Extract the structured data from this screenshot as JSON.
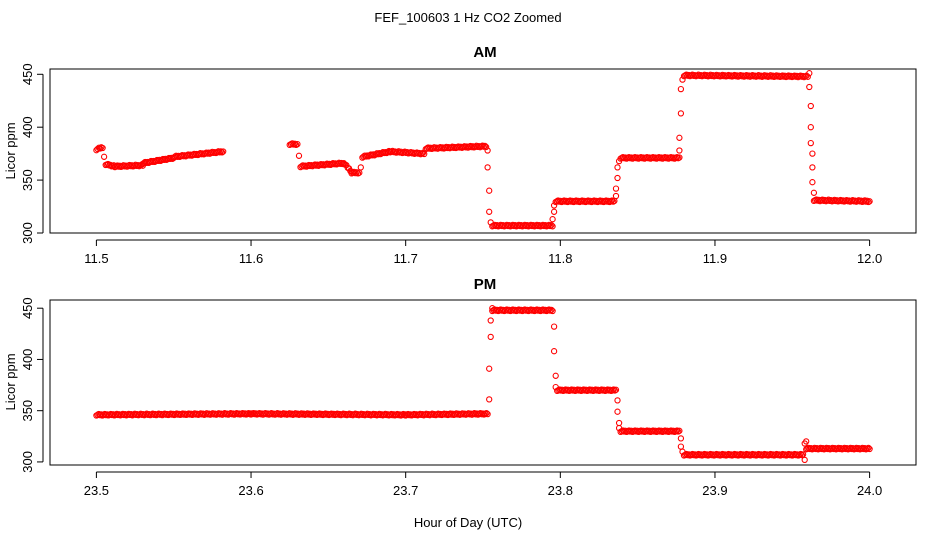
{
  "figure": {
    "title": "FEF_100603  1 Hz CO2 Zoomed",
    "xlabel": "Hour of Day (UTC)",
    "point_color": "#ff0000"
  },
  "chart_data": [
    {
      "type": "scatter",
      "title": "AM",
      "xlabel": "",
      "ylabel": "Licor ppm",
      "xlim": [
        11.47,
        12.03
      ],
      "ylim": [
        300,
        455
      ],
      "xticks": [
        11.5,
        11.6,
        11.7,
        11.8,
        11.9,
        12.0
      ],
      "xtick_labels": [
        "11.5",
        "11.6",
        "11.7",
        "11.8",
        "11.9",
        "12.0"
      ],
      "yticks": [
        300,
        350,
        400,
        450
      ],
      "ytick_labels": [
        "300",
        "350",
        "400",
        "450"
      ],
      "grid": false,
      "series": [
        {
          "color": "#ff0000",
          "runs": [
            {
              "x0": 11.5,
              "x1": 11.504,
              "y0": 379,
              "y1": 381
            },
            {
              "x0": 11.506,
              "x1": 11.512,
              "y0": 365,
              "y1": 363
            },
            {
              "x0": 11.512,
              "x1": 11.53,
              "y0": 363,
              "y1": 364
            },
            {
              "x0": 11.53,
              "x1": 11.55,
              "y0": 366,
              "y1": 371
            },
            {
              "x0": 11.55,
              "x1": 11.582,
              "y0": 372,
              "y1": 377
            },
            {
              "x0": 11.625,
              "x1": 11.63,
              "y0": 384,
              "y1": 384
            },
            {
              "x0": 11.632,
              "x1": 11.66,
              "y0": 363,
              "y1": 366
            },
            {
              "x0": 11.66,
              "x1": 11.665,
              "y0": 366,
              "y1": 358
            },
            {
              "x0": 11.665,
              "x1": 11.67,
              "y0": 357,
              "y1": 357
            },
            {
              "x0": 11.672,
              "x1": 11.69,
              "y0": 372,
              "y1": 377
            },
            {
              "x0": 11.69,
              "x1": 11.712,
              "y0": 377,
              "y1": 375
            },
            {
              "x0": 11.713,
              "x1": 11.752,
              "y0": 380,
              "y1": 382
            },
            {
              "x0": 11.756,
              "x1": 11.795,
              "y0": 307,
              "y1": 307
            },
            {
              "x0": 11.797,
              "x1": 11.835,
              "y0": 330,
              "y1": 330
            },
            {
              "x0": 11.839,
              "x1": 11.877,
              "y0": 371,
              "y1": 371
            },
            {
              "x0": 11.88,
              "x1": 11.96,
              "y0": 449,
              "y1": 448
            },
            {
              "x0": 11.964,
              "x1": 12.0,
              "y0": 331,
              "y1": 330
            }
          ],
          "points": [
            {
              "x": 11.505,
              "y": 372
            },
            {
              "x": 11.631,
              "y": 373
            },
            {
              "x": 11.671,
              "y": 362
            },
            {
              "x": 11.753,
              "y": 378
            },
            {
              "x": 11.753,
              "y": 362
            },
            {
              "x": 11.754,
              "y": 340
            },
            {
              "x": 11.754,
              "y": 320
            },
            {
              "x": 11.755,
              "y": 310
            },
            {
              "x": 11.795,
              "y": 313
            },
            {
              "x": 11.796,
              "y": 320
            },
            {
              "x": 11.796,
              "y": 326
            },
            {
              "x": 11.836,
              "y": 335
            },
            {
              "x": 11.836,
              "y": 342
            },
            {
              "x": 11.837,
              "y": 352
            },
            {
              "x": 11.837,
              "y": 362
            },
            {
              "x": 11.838,
              "y": 368
            },
            {
              "x": 11.877,
              "y": 378
            },
            {
              "x": 11.877,
              "y": 390
            },
            {
              "x": 11.878,
              "y": 413
            },
            {
              "x": 11.878,
              "y": 436
            },
            {
              "x": 11.879,
              "y": 445
            },
            {
              "x": 11.961,
              "y": 451
            },
            {
              "x": 11.961,
              "y": 438
            },
            {
              "x": 11.962,
              "y": 420
            },
            {
              "x": 11.962,
              "y": 400
            },
            {
              "x": 11.962,
              "y": 385
            },
            {
              "x": 11.963,
              "y": 375
            },
            {
              "x": 11.963,
              "y": 362
            },
            {
              "x": 11.963,
              "y": 348
            },
            {
              "x": 11.964,
              "y": 338
            }
          ]
        }
      ]
    },
    {
      "type": "scatter",
      "title": "PM",
      "xlabel": "Hour of Day (UTC)",
      "ylabel": "Licor ppm",
      "xlim": [
        23.47,
        24.03
      ],
      "ylim": [
        297,
        458
      ],
      "xticks": [
        23.5,
        23.6,
        23.7,
        23.8,
        23.9,
        24.0
      ],
      "xtick_labels": [
        "23.5",
        "23.6",
        "23.7",
        "23.8",
        "23.9",
        "24.0"
      ],
      "yticks": [
        300,
        350,
        400,
        450
      ],
      "ytick_labels": [
        "300",
        "350",
        "400",
        "450"
      ],
      "grid": false,
      "series": [
        {
          "color": "#ff0000",
          "runs": [
            {
              "x0": 23.5,
              "x1": 23.6,
              "y0": 346,
              "y1": 347
            },
            {
              "x0": 23.6,
              "x1": 23.7,
              "y0": 347,
              "y1": 346
            },
            {
              "x0": 23.7,
              "x1": 23.753,
              "y0": 346,
              "y1": 347
            },
            {
              "x0": 23.756,
              "x1": 23.795,
              "y0": 448,
              "y1": 448
            },
            {
              "x0": 23.798,
              "x1": 23.836,
              "y0": 370,
              "y1": 370
            },
            {
              "x0": 23.839,
              "x1": 23.877,
              "y0": 330,
              "y1": 330
            },
            {
              "x0": 23.88,
              "x1": 23.957,
              "y0": 307,
              "y1": 307
            },
            {
              "x0": 23.959,
              "x1": 24.0,
              "y0": 313,
              "y1": 313
            }
          ],
          "points": [
            {
              "x": 23.754,
              "y": 361
            },
            {
              "x": 23.754,
              "y": 391
            },
            {
              "x": 23.755,
              "y": 422
            },
            {
              "x": 23.755,
              "y": 438
            },
            {
              "x": 23.756,
              "y": 450
            },
            {
              "x": 23.796,
              "y": 432
            },
            {
              "x": 23.796,
              "y": 408
            },
            {
              "x": 23.797,
              "y": 384
            },
            {
              "x": 23.797,
              "y": 373
            },
            {
              "x": 23.837,
              "y": 360
            },
            {
              "x": 23.837,
              "y": 349
            },
            {
              "x": 23.838,
              "y": 338
            },
            {
              "x": 23.838,
              "y": 333
            },
            {
              "x": 23.878,
              "y": 323
            },
            {
              "x": 23.878,
              "y": 315
            },
            {
              "x": 23.879,
              "y": 310
            },
            {
              "x": 23.958,
              "y": 302
            },
            {
              "x": 23.958,
              "y": 318
            },
            {
              "x": 23.959,
              "y": 320
            }
          ]
        }
      ]
    }
  ]
}
